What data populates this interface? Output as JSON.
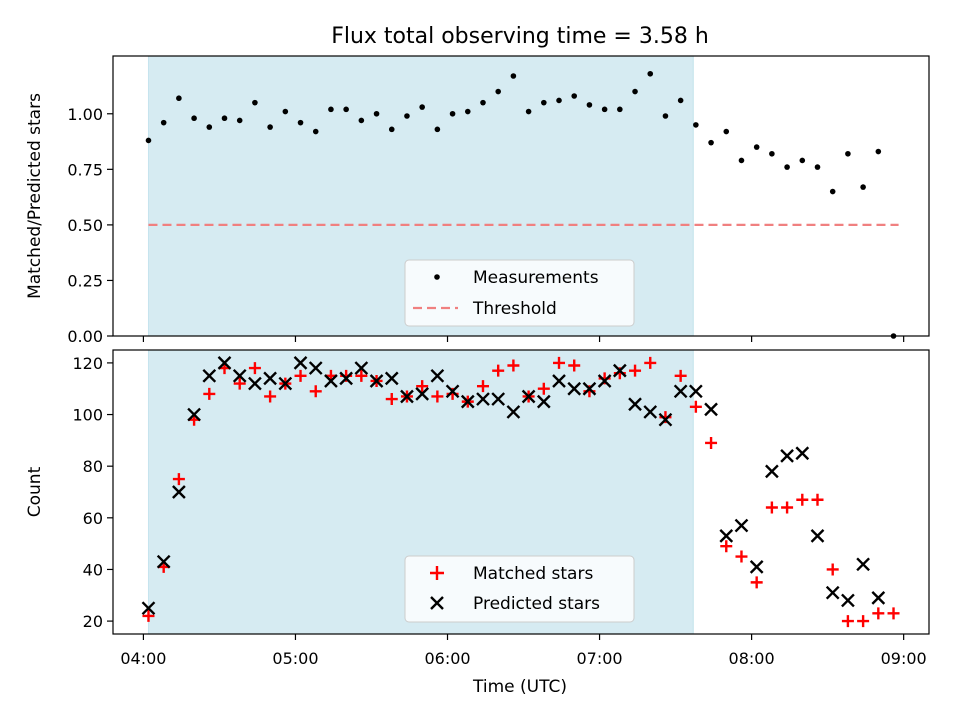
{
  "title": "Flux total observing time = 3.58 h",
  "colors": {
    "span": "#add8e6",
    "threshold": "#f08080",
    "matched": "#ff0000",
    "predicted": "#000000",
    "measurement": "#000000"
  },
  "chart_data": [
    {
      "type": "scatter",
      "ylabel": "Matched/Predicted stars",
      "xlim": [
        "03:48",
        "09:10"
      ],
      "ylim": [
        0,
        1.26
      ],
      "y_ticks": [
        "0.00",
        "0.25",
        "0.50",
        "0.75",
        "1.00"
      ],
      "y_tick_values": [
        0,
        0.25,
        0.5,
        0.75,
        1.0
      ],
      "x_ticks": [
        "04:00",
        "05:00",
        "06:00",
        "07:00",
        "08:00",
        "09:00"
      ],
      "shaded_span": [
        "04:02",
        "07:37"
      ],
      "threshold": {
        "name": "Threshold",
        "value": 0.5,
        "x": [
          "04:02",
          "08:58"
        ]
      },
      "legend": {
        "placement": "bottom-center",
        "entries": [
          "Measurements",
          "Threshold"
        ]
      },
      "series": [
        {
          "name": "Measurements",
          "x": [
            "04:02",
            "04:08",
            "04:14",
            "04:20",
            "04:26",
            "04:32",
            "04:38",
            "04:44",
            "04:50",
            "04:56",
            "05:02",
            "05:08",
            "05:14",
            "05:20",
            "05:26",
            "05:32",
            "05:38",
            "05:44",
            "05:50",
            "05:56",
            "06:02",
            "06:08",
            "06:14",
            "06:20",
            "06:26",
            "06:32",
            "06:38",
            "06:44",
            "06:50",
            "06:56",
            "07:02",
            "07:08",
            "07:14",
            "07:20",
            "07:26",
            "07:32",
            "07:38",
            "07:44",
            "07:50",
            "07:56",
            "08:02",
            "08:08",
            "08:14",
            "08:20",
            "08:26",
            "08:32",
            "08:38",
            "08:44",
            "08:50",
            "08:56"
          ],
          "y": [
            0.88,
            0.96,
            1.07,
            0.98,
            0.94,
            0.98,
            0.97,
            1.05,
            0.94,
            1.01,
            0.96,
            0.92,
            1.02,
            1.02,
            0.97,
            1.0,
            0.93,
            0.99,
            1.03,
            0.93,
            1.0,
            1.01,
            1.05,
            1.1,
            1.17,
            1.01,
            1.05,
            1.06,
            1.08,
            1.04,
            1.02,
            1.02,
            1.1,
            1.18,
            0.99,
            1.06,
            0.95,
            0.87,
            0.92,
            0.79,
            0.85,
            0.82,
            0.76,
            0.79,
            0.76,
            0.65,
            0.82,
            0.67,
            0.83,
            0.0
          ]
        }
      ]
    },
    {
      "type": "scatter",
      "ylabel": "Count",
      "xlabel": "Time (UTC)",
      "xlim": [
        "03:48",
        "09:10"
      ],
      "ylim": [
        15,
        125
      ],
      "y_ticks": [
        "20",
        "40",
        "60",
        "80",
        "100",
        "120"
      ],
      "y_tick_values": [
        20,
        40,
        60,
        80,
        100,
        120
      ],
      "x_ticks": [
        "04:00",
        "05:00",
        "06:00",
        "07:00",
        "08:00",
        "09:00"
      ],
      "shaded_span": [
        "04:02",
        "07:37"
      ],
      "legend": {
        "placement": "bottom-center",
        "entries": [
          "Matched stars",
          "Predicted stars"
        ]
      },
      "series": [
        {
          "name": "Matched stars",
          "x": [
            "04:02",
            "04:08",
            "04:14",
            "04:20",
            "04:26",
            "04:32",
            "04:38",
            "04:44",
            "04:50",
            "04:56",
            "05:02",
            "05:08",
            "05:14",
            "05:20",
            "05:26",
            "05:32",
            "05:38",
            "05:44",
            "05:50",
            "05:56",
            "06:02",
            "06:08",
            "06:14",
            "06:20",
            "06:26",
            "06:32",
            "06:38",
            "06:44",
            "06:50",
            "06:56",
            "07:02",
            "07:08",
            "07:14",
            "07:20",
            "07:26",
            "07:32",
            "07:38",
            "07:44",
            "07:50",
            "07:56",
            "08:02",
            "08:08",
            "08:14",
            "08:20",
            "08:26",
            "08:32",
            "08:38",
            "08:44",
            "08:50",
            "08:56"
          ],
          "y": [
            22,
            41,
            75,
            98,
            108,
            118,
            112,
            118,
            107,
            112,
            115,
            109,
            115,
            115,
            115,
            113,
            106,
            107,
            111,
            107,
            108,
            105,
            111,
            117,
            119,
            107,
            110,
            120,
            119,
            109,
            114,
            116,
            117,
            120,
            99,
            115,
            103,
            89,
            49,
            45,
            35,
            64,
            64,
            67,
            67,
            40,
            20,
            20,
            23,
            23
          ]
        }
      ]
    }
  ]
}
